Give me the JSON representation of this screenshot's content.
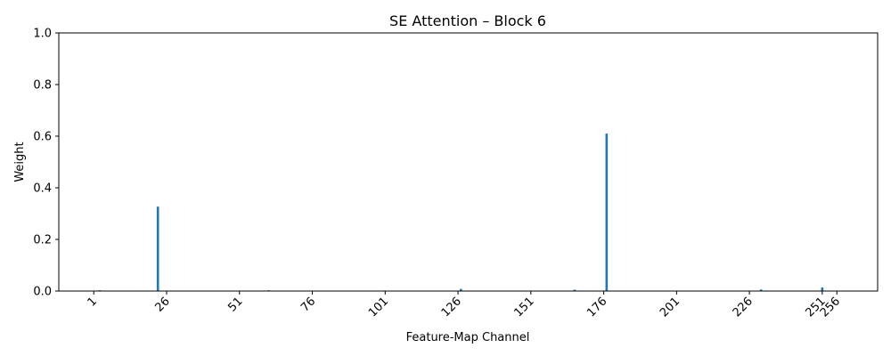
{
  "chart_data": {
    "type": "bar",
    "title": "SE Attention – Block 6",
    "xlabel": "Feature-Map Channel",
    "ylabel": "Weight",
    "xlim": [
      -11,
      270
    ],
    "ylim": [
      0,
      1
    ],
    "x_ticks": [
      1,
      26,
      51,
      76,
      101,
      126,
      151,
      176,
      201,
      226,
      251,
      256
    ],
    "y_ticks": [
      "0.0",
      "0.2",
      "0.4",
      "0.6",
      "0.8",
      "1.0"
    ],
    "grid": false,
    "bar_color": "#1f77b4",
    "n_channels": 256,
    "nonzero_values": [
      {
        "channel": 3,
        "value": 0.003
      },
      {
        "channel": 23,
        "value": 0.327
      },
      {
        "channel": 61,
        "value": 0.003
      },
      {
        "channel": 127,
        "value": 0.008
      },
      {
        "channel": 136,
        "value": 0.002
      },
      {
        "channel": 166,
        "value": 0.005
      },
      {
        "channel": 177,
        "value": 0.61
      },
      {
        "channel": 230,
        "value": 0.006
      },
      {
        "channel": 232,
        "value": 0.002
      },
      {
        "channel": 251,
        "value": 0.014
      }
    ]
  }
}
